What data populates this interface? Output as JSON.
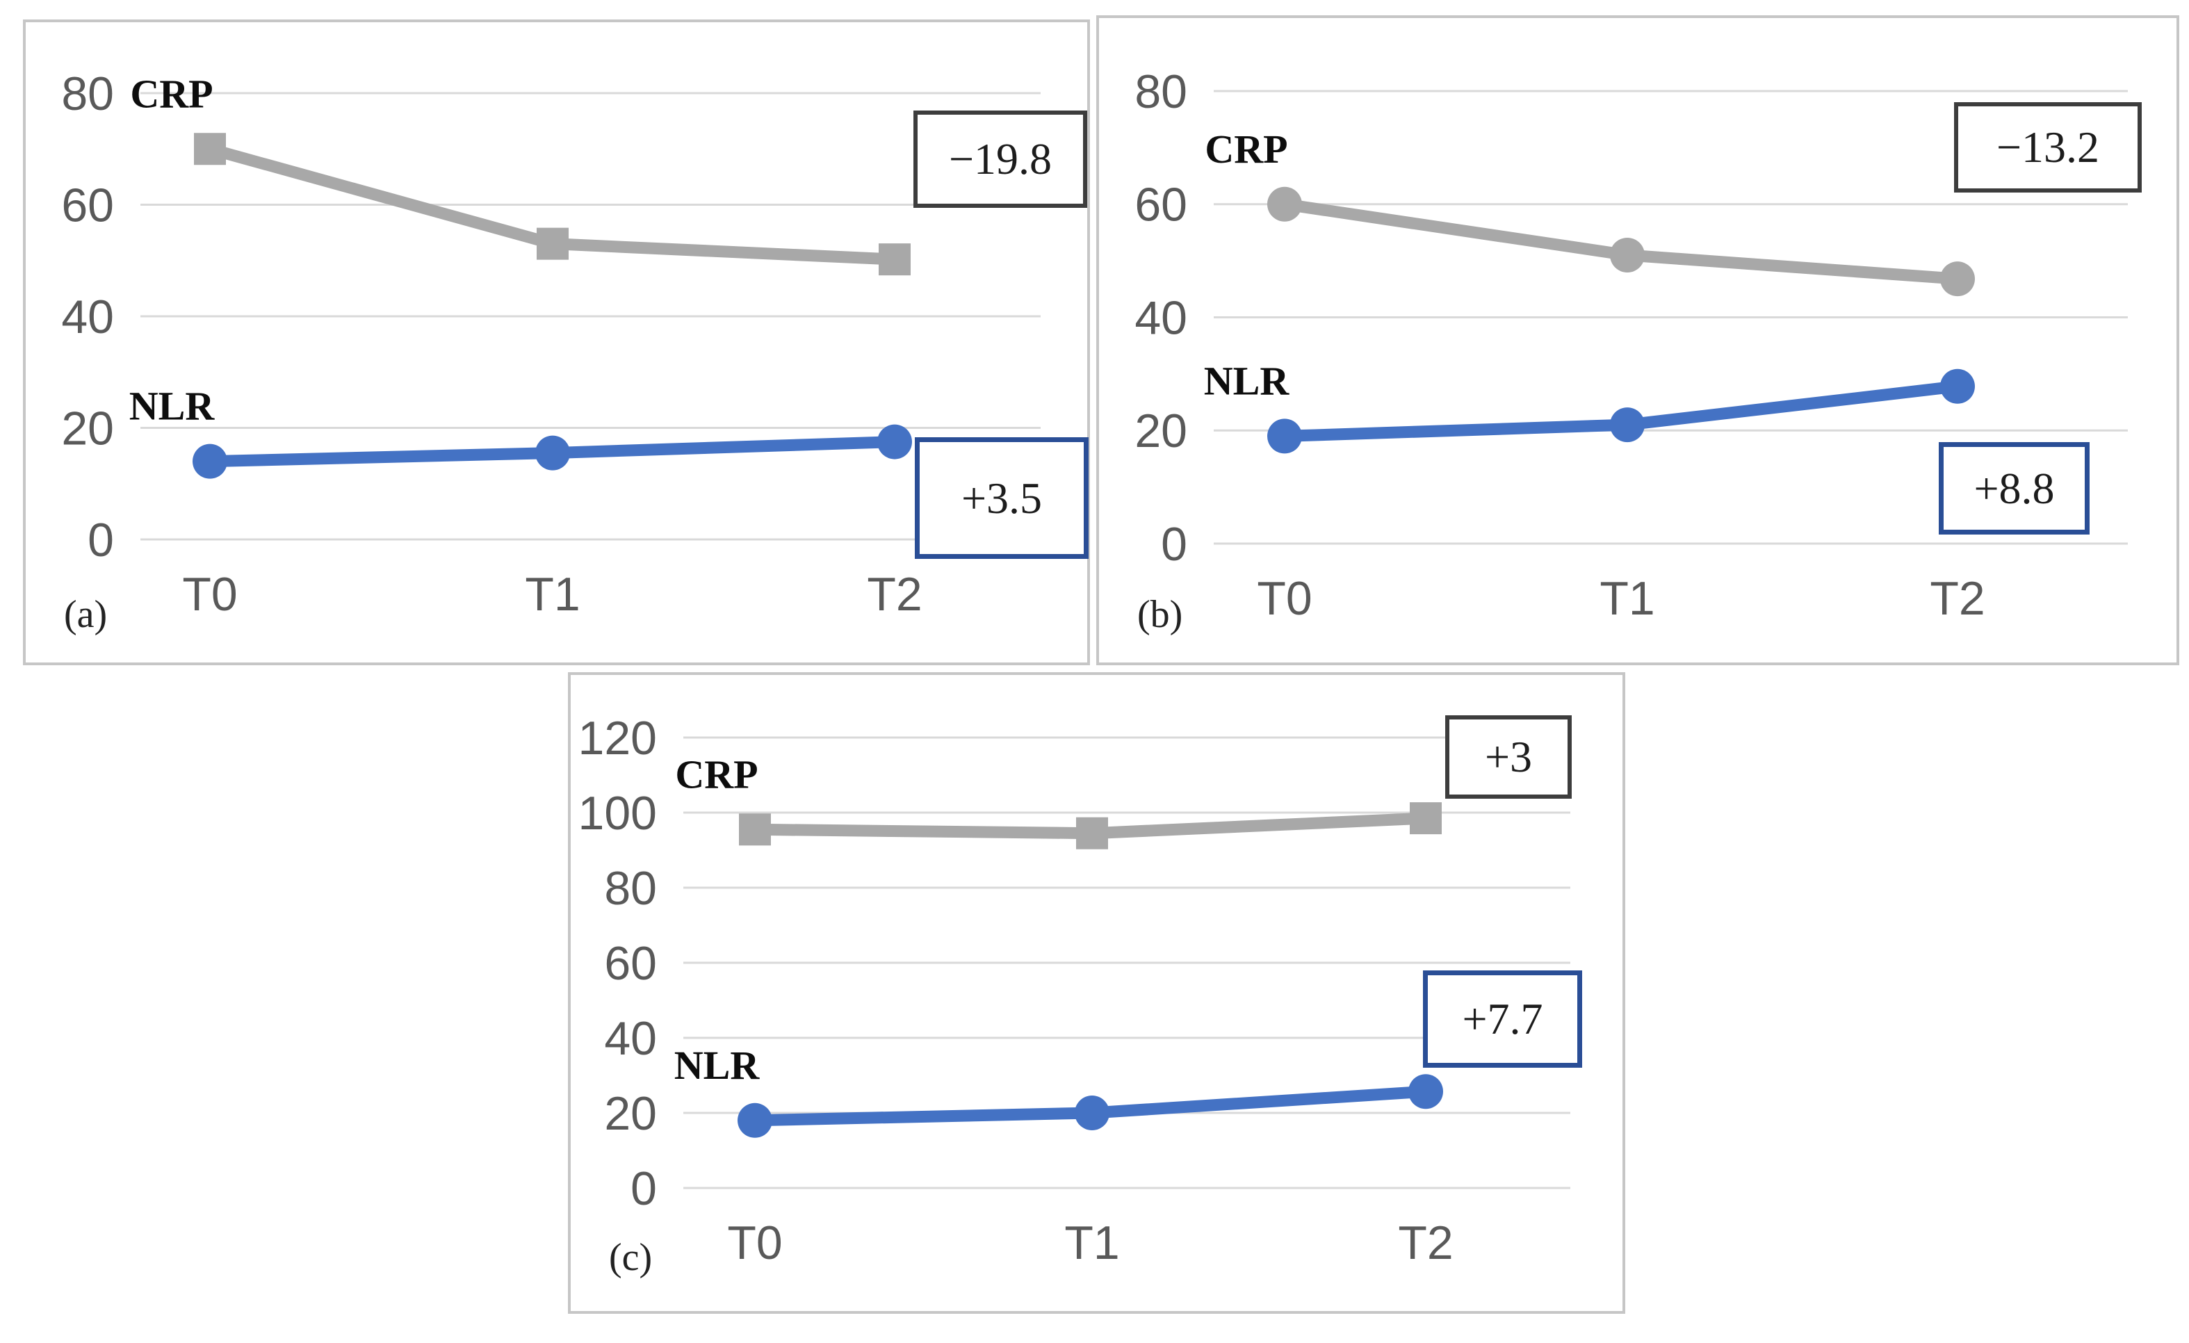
{
  "figure": {
    "background": "#ffffff"
  },
  "colors": {
    "crp_line": "#a8a8a8",
    "nlr_line": "#4472c4",
    "gridline": "#d9d9d9",
    "axis_text": "#595959",
    "series_label_text": "#0d0d0d",
    "annotation_text": "#1c1c1c",
    "crp_box_border": "#3d3d3d",
    "nlr_box_border": "#2a4e96",
    "panel_border": "#c6c6c6"
  },
  "chart_data": [
    {
      "id": "a",
      "type": "line",
      "panel_label": "(a)",
      "categories": [
        "T0",
        "T1",
        "T2"
      ],
      "series": [
        {
          "name": "CRP",
          "values": [
            70,
            53,
            50.2
          ],
          "marker": "square",
          "color_key": "crp_line"
        },
        {
          "name": "NLR",
          "values": [
            14,
            15.5,
            17.5
          ],
          "marker": "circle",
          "color_key": "nlr_line"
        }
      ],
      "annotations": [
        {
          "text": "−19.8",
          "series": "CRP"
        },
        {
          "text": "+3.5",
          "series": "NLR"
        }
      ],
      "ylim": [
        0,
        80
      ],
      "yticks": [
        0,
        20,
        40,
        60,
        80
      ],
      "grid": true,
      "legend": "inline-series-labels"
    },
    {
      "id": "b",
      "type": "line",
      "panel_label": "(b)",
      "categories": [
        "T0",
        "T1",
        "T2"
      ],
      "series": [
        {
          "name": "CRP",
          "values": [
            60,
            51,
            46.8
          ],
          "marker": "circle",
          "color_key": "crp_line"
        },
        {
          "name": "NLR",
          "values": [
            19,
            21,
            27.8
          ],
          "marker": "circle",
          "color_key": "nlr_line"
        }
      ],
      "annotations": [
        {
          "text": "−13.2",
          "series": "CRP"
        },
        {
          "text": "+8.8",
          "series": "NLR"
        }
      ],
      "ylim": [
        0,
        80
      ],
      "yticks": [
        0,
        20,
        40,
        60,
        80
      ],
      "grid": true,
      "legend": "inline-series-labels"
    },
    {
      "id": "c",
      "type": "line",
      "panel_label": "(c)",
      "categories": [
        "T0",
        "T1",
        "T2"
      ],
      "series": [
        {
          "name": "CRP",
          "values": [
            95.5,
            94.5,
            98.5
          ],
          "marker": "square",
          "color_key": "crp_line"
        },
        {
          "name": "NLR",
          "values": [
            18,
            20,
            25.7
          ],
          "marker": "circle",
          "color_key": "nlr_line"
        }
      ],
      "annotations": [
        {
          "text": "+3",
          "series": "CRP"
        },
        {
          "text": "+7.7",
          "series": "NLR"
        }
      ],
      "ylim": [
        0,
        120
      ],
      "yticks": [
        0,
        20,
        40,
        60,
        80,
        100,
        120
      ],
      "grid": true,
      "legend": "inline-series-labels"
    }
  ]
}
